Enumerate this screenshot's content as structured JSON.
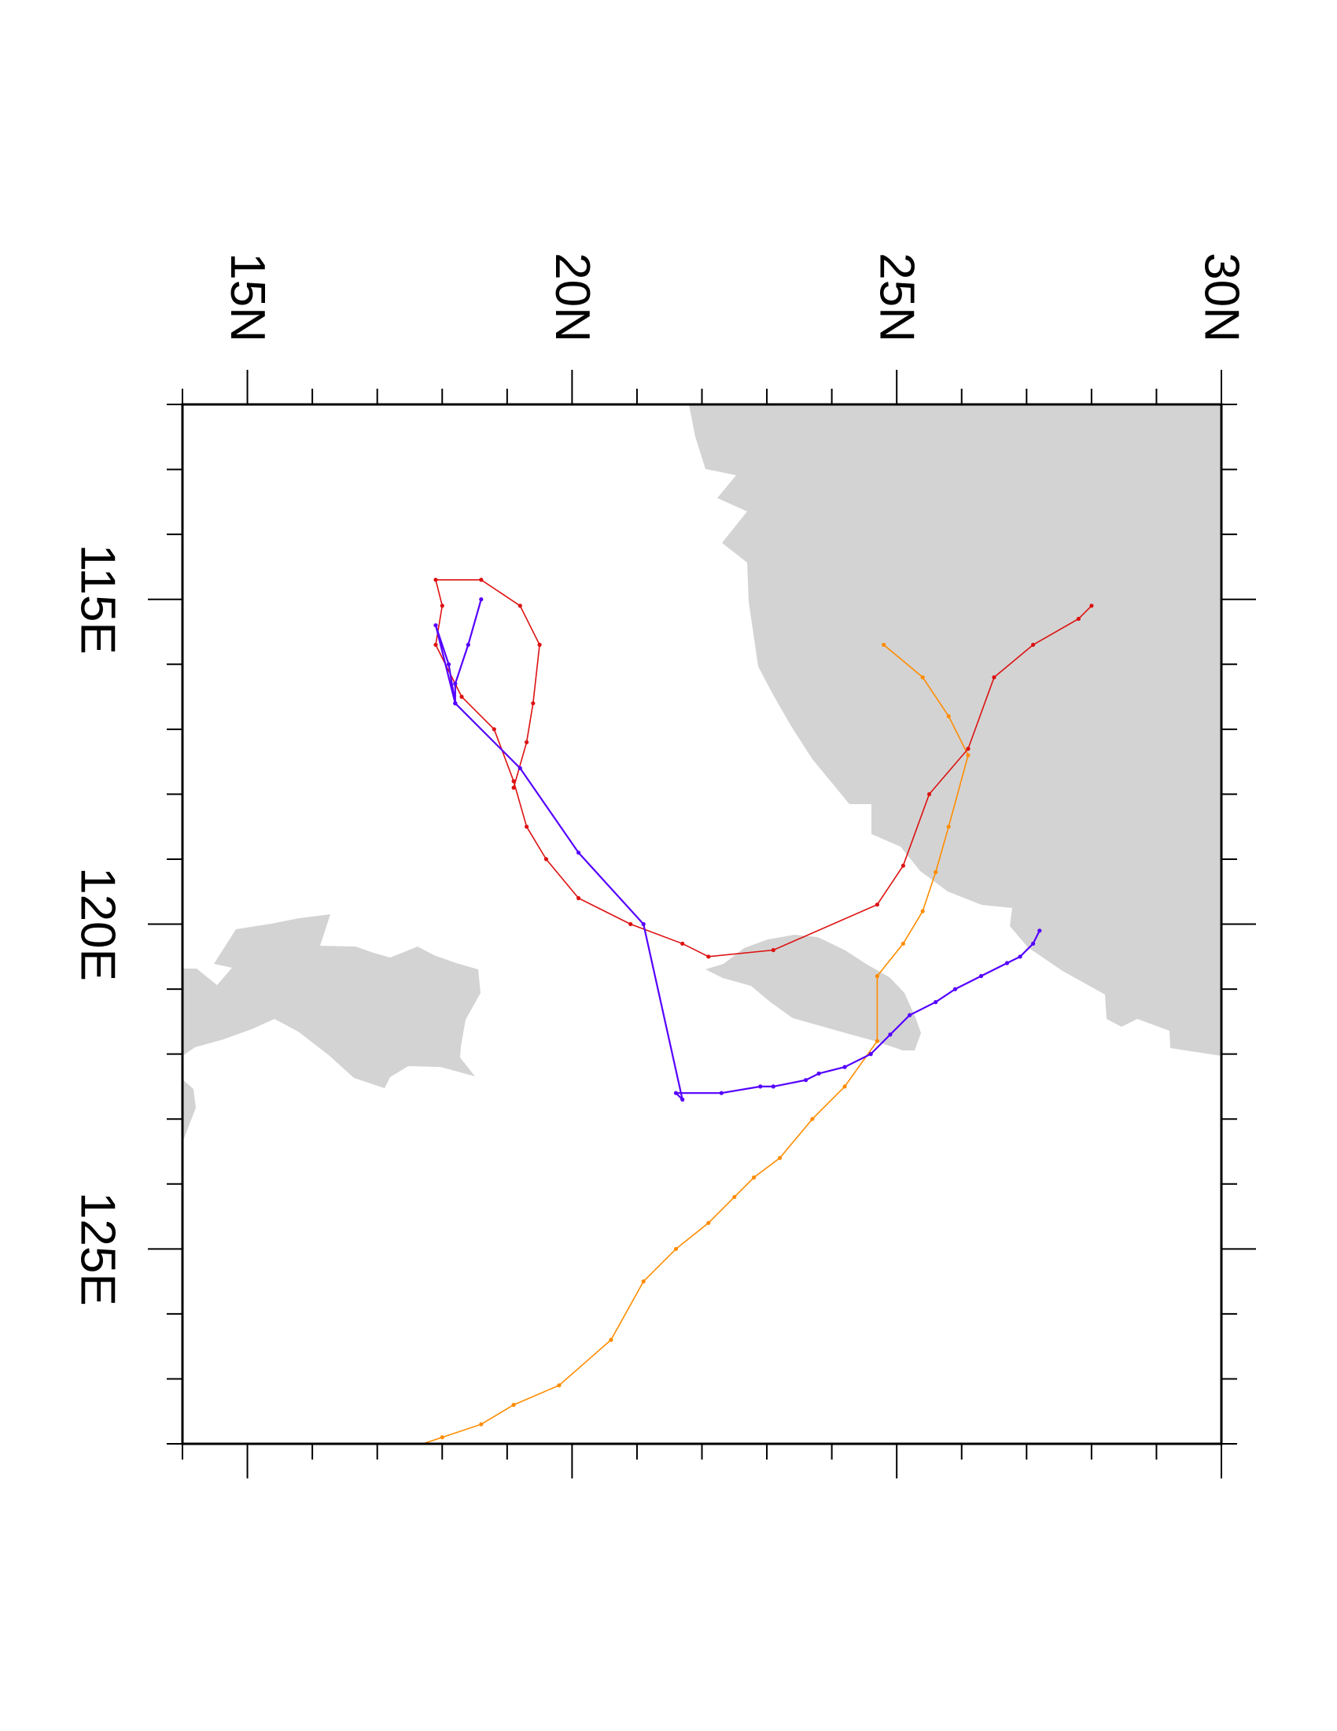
{
  "map": {
    "projection": "rotated-90-clockwise",
    "lon_range": [
      112,
      128
    ],
    "lat_range": [
      14,
      30
    ],
    "land_color": "#d3d3d3",
    "frame_color": "#000000",
    "lat_major_ticks": [
      {
        "value": 15,
        "label": "15N"
      },
      {
        "value": 20,
        "label": "20N"
      },
      {
        "value": 25,
        "label": "25N"
      },
      {
        "value": 30,
        "label": "30N"
      }
    ],
    "lat_minor_step": 1,
    "lon_major_ticks": [
      {
        "value": 115,
        "label": "115E"
      },
      {
        "value": 120,
        "label": "120E"
      },
      {
        "value": 125,
        "label": "125E"
      }
    ],
    "lon_minor_step": 1
  },
  "tracks": [
    {
      "color": "#ff8c00",
      "points": [
        [
          115.7,
          24.8
        ],
        [
          116.2,
          25.4
        ],
        [
          116.8,
          25.8
        ],
        [
          117.4,
          26.1
        ],
        [
          118.5,
          25.8
        ],
        [
          119.2,
          25.6
        ],
        [
          119.8,
          25.4
        ],
        [
          120.3,
          25.1
        ],
        [
          120.8,
          24.7
        ],
        [
          121.8,
          24.7
        ],
        [
          122.5,
          24.2
        ],
        [
          123.0,
          23.7
        ],
        [
          123.6,
          23.2
        ],
        [
          123.9,
          22.8
        ],
        [
          124.2,
          22.5
        ],
        [
          124.6,
          22.1
        ],
        [
          125.0,
          21.6
        ],
        [
          125.5,
          21.1
        ],
        [
          126.4,
          20.6
        ],
        [
          127.1,
          19.8
        ],
        [
          127.4,
          19.1
        ],
        [
          127.7,
          18.6
        ],
        [
          127.9,
          18.0
        ],
        [
          128.1,
          17.4
        ]
      ]
    },
    {
      "color": "#dd1111",
      "points": [
        [
          115.1,
          28.0
        ],
        [
          115.3,
          27.8
        ],
        [
          115.7,
          27.1
        ],
        [
          116.2,
          26.5
        ],
        [
          117.3,
          26.1
        ],
        [
          118.0,
          25.5
        ],
        [
          119.1,
          25.1
        ],
        [
          119.7,
          24.7
        ],
        [
          120.4,
          23.1
        ],
        [
          120.5,
          22.1
        ],
        [
          120.3,
          21.7
        ],
        [
          120.0,
          20.9
        ],
        [
          119.6,
          20.1
        ],
        [
          119.0,
          19.6
        ],
        [
          118.5,
          19.3
        ],
        [
          117.8,
          19.1
        ],
        [
          117.0,
          18.8
        ],
        [
          116.5,
          18.3
        ],
        [
          115.7,
          17.9
        ],
        [
          115.1,
          18.0
        ],
        [
          114.7,
          17.9
        ],
        [
          114.7,
          18.6
        ],
        [
          115.1,
          19.2
        ],
        [
          115.7,
          19.5
        ],
        [
          116.6,
          19.4
        ],
        [
          117.2,
          19.3
        ],
        [
          117.9,
          19.1
        ]
      ]
    },
    {
      "color": "#5500ff",
      "points": [
        [
          115.0,
          18.6
        ],
        [
          115.7,
          18.4
        ],
        [
          116.3,
          18.2
        ],
        [
          116.6,
          18.2
        ],
        [
          116.0,
          18.1
        ],
        [
          115.4,
          17.9
        ],
        [
          116.6,
          18.2
        ],
        [
          117.6,
          19.2
        ],
        [
          118.9,
          20.1
        ],
        [
          120.0,
          21.1
        ],
        [
          122.7,
          21.7
        ],
        [
          122.6,
          21.6
        ],
        [
          122.6,
          22.3
        ],
        [
          122.5,
          22.9
        ],
        [
          122.5,
          23.1
        ],
        [
          122.4,
          23.6
        ],
        [
          122.3,
          23.8
        ],
        [
          122.2,
          24.2
        ],
        [
          122.0,
          24.6
        ],
        [
          121.7,
          24.9
        ],
        [
          121.4,
          25.2
        ],
        [
          121.2,
          25.6
        ],
        [
          121.0,
          25.9
        ],
        [
          120.8,
          26.3
        ],
        [
          120.6,
          26.7
        ],
        [
          120.5,
          26.9
        ],
        [
          120.3,
          27.1
        ],
        [
          120.1,
          27.2
        ]
      ]
    }
  ]
}
